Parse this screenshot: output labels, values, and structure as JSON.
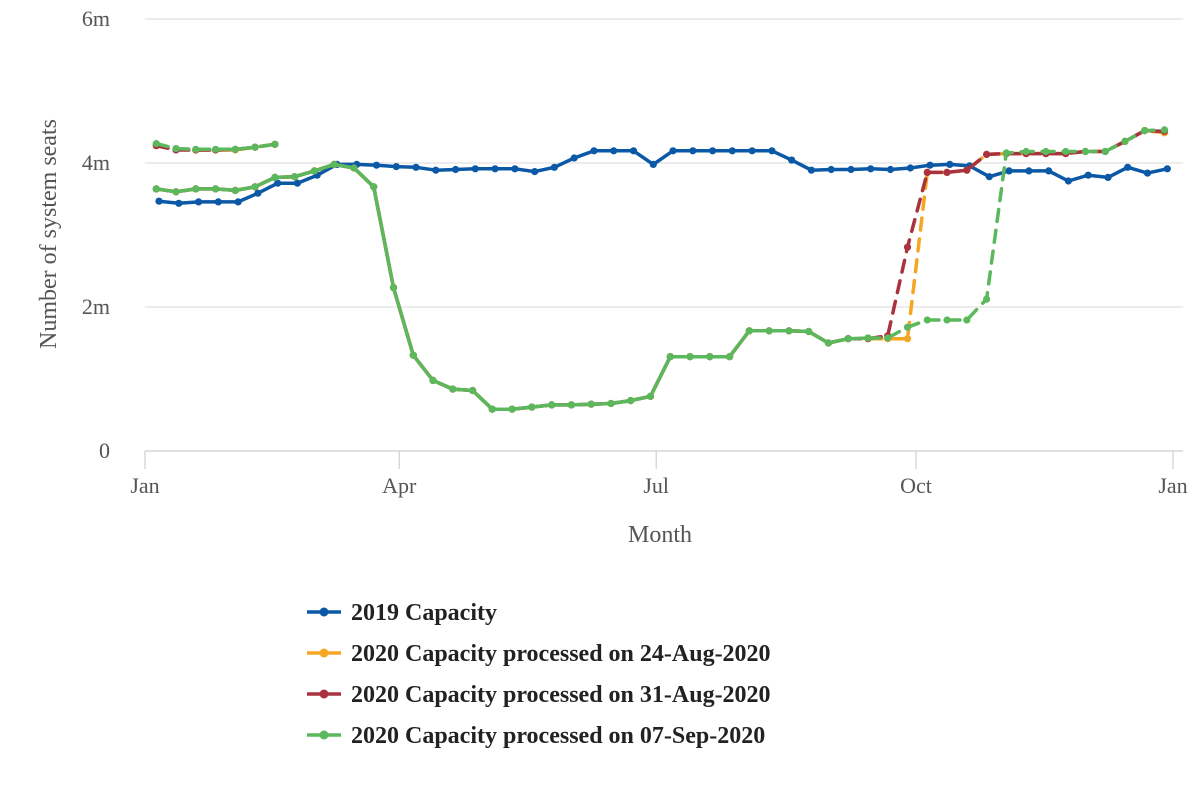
{
  "chart_data": {
    "type": "line",
    "title": "",
    "xlabel": "Month",
    "ylabel": "Number of system seats",
    "x_ticks": [
      "Jan",
      "Apr",
      "Jul",
      "Oct",
      "Jan"
    ],
    "x_tick_weeks": [
      0,
      12.86,
      25.86,
      39,
      52
    ],
    "y_ticks": [
      "0",
      "2m",
      "4m",
      "6m"
    ],
    "y_tick_values": [
      0,
      2,
      4,
      6
    ],
    "ylim": [
      0,
      6
    ],
    "y_unit": "millions of seats",
    "x_unit": "weeks since 1 Jan",
    "xlim": [
      0,
      52
    ],
    "grid": "horizontal",
    "legend_position": "bottom",
    "series": [
      {
        "name": "2019 Capacity",
        "color": "#0a58a6",
        "segments": [
          {
            "style": "solid",
            "points": [
              [
                0.71,
                3.47
              ],
              [
                1.71,
                3.44
              ],
              [
                2.71,
                3.46
              ],
              [
                3.71,
                3.46
              ],
              [
                4.71,
                3.46
              ],
              [
                5.71,
                3.58
              ],
              [
                6.71,
                3.72
              ],
              [
                7.71,
                3.72
              ],
              [
                8.71,
                3.83
              ],
              [
                9.71,
                3.98
              ],
              [
                10.71,
                3.98
              ],
              [
                11.71,
                3.97
              ],
              [
                12.71,
                3.95
              ],
              [
                13.71,
                3.94
              ],
              [
                14.71,
                3.9
              ],
              [
                15.71,
                3.91
              ],
              [
                16.71,
                3.92
              ],
              [
                17.71,
                3.92
              ],
              [
                18.71,
                3.92
              ],
              [
                19.71,
                3.88
              ],
              [
                20.71,
                3.94
              ],
              [
                21.71,
                4.07
              ],
              [
                22.71,
                4.17
              ],
              [
                23.71,
                4.17
              ],
              [
                24.71,
                4.17
              ],
              [
                25.71,
                3.98
              ],
              [
                26.71,
                4.17
              ],
              [
                27.71,
                4.17
              ],
              [
                28.71,
                4.17
              ],
              [
                29.71,
                4.17
              ],
              [
                30.71,
                4.17
              ],
              [
                31.71,
                4.17
              ],
              [
                32.71,
                4.04
              ],
              [
                33.71,
                3.9
              ],
              [
                34.71,
                3.91
              ],
              [
                35.71,
                3.91
              ],
              [
                36.71,
                3.92
              ],
              [
                37.71,
                3.91
              ],
              [
                38.71,
                3.93
              ],
              [
                39.71,
                3.97
              ],
              [
                40.71,
                3.98
              ],
              [
                41.71,
                3.96
              ],
              [
                42.71,
                3.81
              ],
              [
                43.71,
                3.89
              ],
              [
                44.71,
                3.89
              ],
              [
                45.71,
                3.89
              ],
              [
                46.71,
                3.75
              ],
              [
                47.71,
                3.83
              ],
              [
                48.71,
                3.8
              ],
              [
                49.71,
                3.94
              ],
              [
                50.71,
                3.86
              ],
              [
                51.71,
                3.92
              ]
            ]
          }
        ]
      },
      {
        "name": "2020 Capacity processed on 24-Aug-2020",
        "color": "#f5a623",
        "segments": [
          {
            "style": "dashed",
            "points": [
              [
                0.57,
                4.26
              ],
              [
                1.57,
                4.19
              ],
              [
                2.57,
                4.18
              ],
              [
                3.57,
                4.18
              ],
              [
                4.57,
                4.18
              ],
              [
                5.57,
                4.22
              ],
              [
                6.57,
                4.26
              ]
            ]
          },
          {
            "style": "solid",
            "points": [
              [
                0.57,
                3.64
              ],
              [
                1.57,
                3.6
              ],
              [
                2.57,
                3.64
              ],
              [
                3.57,
                3.64
              ],
              [
                4.57,
                3.62
              ],
              [
                5.57,
                3.67
              ],
              [
                6.57,
                3.8
              ],
              [
                7.57,
                3.81
              ],
              [
                8.57,
                3.89
              ],
              [
                9.57,
                3.98
              ],
              [
                10.57,
                3.93
              ],
              [
                11.57,
                3.67
              ],
              [
                12.57,
                2.27
              ],
              [
                13.57,
                1.33
              ],
              [
                14.57,
                0.98
              ],
              [
                15.57,
                0.86
              ],
              [
                16.57,
                0.84
              ],
              [
                17.57,
                0.58
              ],
              [
                18.57,
                0.58
              ],
              [
                19.57,
                0.61
              ],
              [
                20.57,
                0.64
              ],
              [
                21.57,
                0.64
              ],
              [
                22.57,
                0.65
              ],
              [
                23.57,
                0.66
              ],
              [
                24.57,
                0.7
              ],
              [
                25.57,
                0.76
              ],
              [
                26.57,
                1.31
              ],
              [
                27.57,
                1.31
              ],
              [
                28.57,
                1.31
              ],
              [
                29.57,
                1.31
              ],
              [
                30.57,
                1.67
              ],
              [
                31.57,
                1.67
              ],
              [
                32.57,
                1.67
              ],
              [
                33.57,
                1.66
              ],
              [
                34.57,
                1.5
              ]
            ]
          },
          {
            "style": "dashed",
            "points": [
              [
                34.57,
                1.5
              ],
              [
                35.57,
                1.56
              ],
              [
                36.57,
                1.56
              ],
              [
                37.57,
                1.56
              ],
              [
                38.57,
                1.56
              ],
              [
                39.57,
                3.87
              ],
              [
                40.57,
                3.87
              ],
              [
                41.57,
                3.9
              ],
              [
                42.57,
                4.12
              ],
              [
                43.57,
                4.13
              ],
              [
                44.57,
                4.13
              ],
              [
                45.57,
                4.13
              ],
              [
                46.57,
                4.13
              ],
              [
                47.57,
                4.16
              ],
              [
                48.57,
                4.16
              ],
              [
                49.57,
                4.3
              ],
              [
                50.57,
                4.45
              ],
              [
                51.57,
                4.42
              ]
            ]
          }
        ]
      },
      {
        "name": "2020 Capacity processed on 31-Aug-2020",
        "color": "#a8323e",
        "segments": [
          {
            "style": "dashed",
            "points": [
              [
                0.57,
                4.24
              ],
              [
                1.57,
                4.18
              ],
              [
                2.57,
                4.18
              ],
              [
                3.57,
                4.18
              ],
              [
                4.57,
                4.19
              ],
              [
                5.57,
                4.22
              ],
              [
                6.57,
                4.26
              ]
            ]
          },
          {
            "style": "solid",
            "points": [
              [
                0.57,
                3.64
              ],
              [
                1.57,
                3.6
              ],
              [
                2.57,
                3.64
              ],
              [
                3.57,
                3.64
              ],
              [
                4.57,
                3.62
              ],
              [
                5.57,
                3.67
              ],
              [
                6.57,
                3.8
              ],
              [
                7.57,
                3.81
              ],
              [
                8.57,
                3.89
              ],
              [
                9.57,
                3.98
              ],
              [
                10.57,
                3.93
              ],
              [
                11.57,
                3.67
              ],
              [
                12.57,
                2.27
              ],
              [
                13.57,
                1.33
              ],
              [
                14.57,
                0.98
              ],
              [
                15.57,
                0.86
              ],
              [
                16.57,
                0.84
              ],
              [
                17.57,
                0.58
              ],
              [
                18.57,
                0.58
              ],
              [
                19.57,
                0.61
              ],
              [
                20.57,
                0.64
              ],
              [
                21.57,
                0.64
              ],
              [
                22.57,
                0.65
              ],
              [
                23.57,
                0.66
              ],
              [
                24.57,
                0.7
              ],
              [
                25.57,
                0.76
              ],
              [
                26.57,
                1.31
              ],
              [
                27.57,
                1.31
              ],
              [
                28.57,
                1.31
              ],
              [
                29.57,
                1.31
              ],
              [
                30.57,
                1.67
              ],
              [
                31.57,
                1.67
              ],
              [
                32.57,
                1.67
              ],
              [
                33.57,
                1.66
              ],
              [
                34.57,
                1.5
              ],
              [
                35.57,
                1.56
              ]
            ]
          },
          {
            "style": "dashed",
            "points": [
              [
                35.57,
                1.56
              ],
              [
                36.57,
                1.56
              ],
              [
                37.57,
                1.6
              ],
              [
                38.57,
                2.83
              ],
              [
                39.57,
                3.87
              ],
              [
                40.57,
                3.87
              ],
              [
                41.57,
                3.9
              ],
              [
                42.57,
                4.12
              ],
              [
                43.57,
                4.13
              ],
              [
                44.57,
                4.13
              ],
              [
                45.57,
                4.13
              ],
              [
                46.57,
                4.13
              ],
              [
                47.57,
                4.16
              ],
              [
                48.57,
                4.16
              ],
              [
                49.57,
                4.3
              ],
              [
                50.57,
                4.45
              ],
              [
                51.57,
                4.44
              ]
            ]
          }
        ]
      },
      {
        "name": "2020 Capacity processed on 07-Sep-2020",
        "color": "#5cb85c",
        "segments": [
          {
            "style": "dashed",
            "points": [
              [
                0.57,
                4.27
              ],
              [
                1.57,
                4.2
              ],
              [
                2.57,
                4.19
              ],
              [
                3.57,
                4.19
              ],
              [
                4.57,
                4.19
              ],
              [
                5.57,
                4.22
              ],
              [
                6.57,
                4.26
              ]
            ]
          },
          {
            "style": "solid",
            "points": [
              [
                0.57,
                3.64
              ],
              [
                1.57,
                3.6
              ],
              [
                2.57,
                3.64
              ],
              [
                3.57,
                3.64
              ],
              [
                4.57,
                3.62
              ],
              [
                5.57,
                3.67
              ],
              [
                6.57,
                3.8
              ],
              [
                7.57,
                3.81
              ],
              [
                8.57,
                3.89
              ],
              [
                9.57,
                3.98
              ],
              [
                10.57,
                3.93
              ],
              [
                11.57,
                3.67
              ],
              [
                12.57,
                2.27
              ],
              [
                13.57,
                1.33
              ],
              [
                14.57,
                0.98
              ],
              [
                15.57,
                0.86
              ],
              [
                16.57,
                0.84
              ],
              [
                17.57,
                0.58
              ],
              [
                18.57,
                0.58
              ],
              [
                19.57,
                0.61
              ],
              [
                20.57,
                0.64
              ],
              [
                21.57,
                0.64
              ],
              [
                22.57,
                0.65
              ],
              [
                23.57,
                0.66
              ],
              [
                24.57,
                0.7
              ],
              [
                25.57,
                0.76
              ],
              [
                26.57,
                1.31
              ],
              [
                27.57,
                1.31
              ],
              [
                28.57,
                1.31
              ],
              [
                29.57,
                1.31
              ],
              [
                30.57,
                1.67
              ],
              [
                31.57,
                1.67
              ],
              [
                32.57,
                1.67
              ],
              [
                33.57,
                1.66
              ],
              [
                34.57,
                1.5
              ],
              [
                35.57,
                1.56
              ],
              [
                36.57,
                1.57
              ]
            ]
          },
          {
            "style": "dashed",
            "points": [
              [
                36.57,
                1.57
              ],
              [
                37.57,
                1.57
              ],
              [
                38.57,
                1.72
              ],
              [
                39.57,
                1.82
              ],
              [
                40.57,
                1.82
              ],
              [
                41.57,
                1.82
              ],
              [
                42.57,
                2.11
              ],
              [
                43.57,
                4.14
              ],
              [
                44.57,
                4.16
              ],
              [
                45.57,
                4.16
              ],
              [
                46.57,
                4.16
              ],
              [
                47.57,
                4.16
              ],
              [
                48.57,
                4.16
              ],
              [
                49.57,
                4.3
              ],
              [
                50.57,
                4.45
              ],
              [
                51.57,
                4.46
              ]
            ]
          }
        ]
      }
    ]
  }
}
